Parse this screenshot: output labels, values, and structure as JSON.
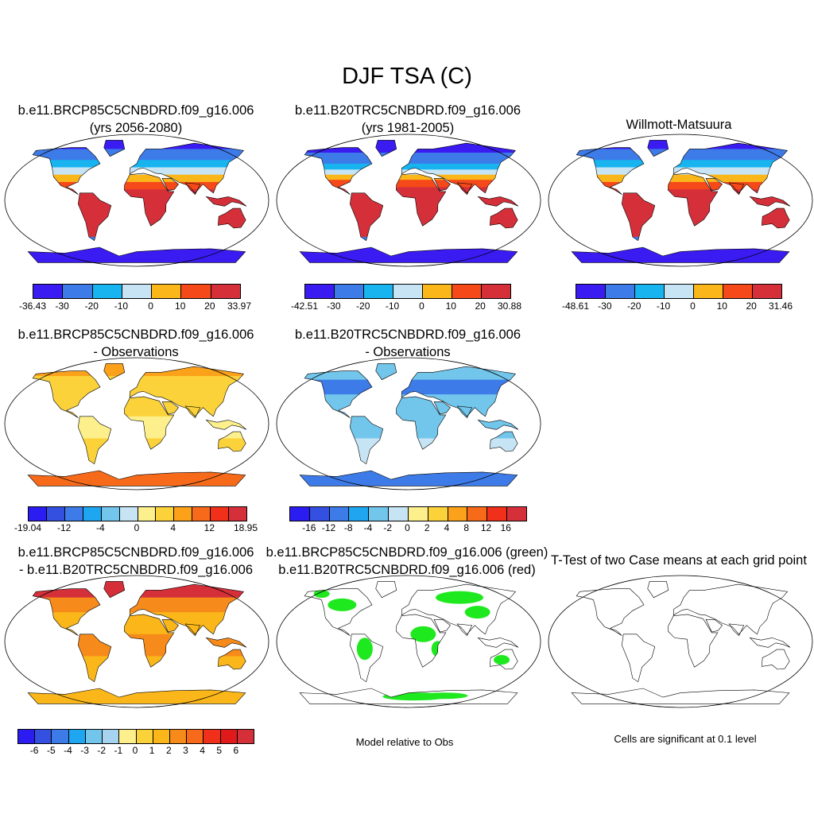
{
  "title": "DJF TSA (C)",
  "panels": [
    {
      "id": "p1",
      "title1": "b.e11.BRCP85C5CNBDRD.f09_g16.006",
      "title2": "(yrs 2056-2080)",
      "style": "temp",
      "variant": "future"
    },
    {
      "id": "p2",
      "title1": "b.e11.B20TRC5CNBDRD.f09_g16.006",
      "title2": "(yrs 1981-2005)",
      "style": "temp",
      "variant": "hist"
    },
    {
      "id": "p3",
      "title1": "",
      "title2": "Willmott-Matsuura",
      "style": "temp",
      "variant": "obs"
    },
    {
      "id": "p4",
      "title1": "b.e11.BRCP85C5CNBDRD.f09_g16.006",
      "title2": "- Observations",
      "style": "diff",
      "variant": "warm"
    },
    {
      "id": "p5",
      "title1": "b.e11.B20TRC5CNBDRD.f09_g16.006",
      "title2": "- Observations",
      "style": "diff",
      "variant": "cool"
    },
    {
      "id": "p7",
      "title1": "b.e11.BRCP85C5CNBDRD.f09_g16.006",
      "title2": "- b.e11.B20TRC5CNBDRD.f09_g16.006",
      "style": "diff",
      "variant": "hot"
    },
    {
      "id": "p8",
      "title1": "b.e11.BRCP85C5CNBDRD.f09_g16.006 (green)",
      "title2": "b.e11.B20TRC5CNBDRD.f09_g16.006 (red)",
      "style": "redgreen",
      "variant": "mix"
    },
    {
      "id": "p9",
      "title1": "",
      "title2": "T-Test of two Case means at each grid point",
      "style": "sig",
      "variant": "red"
    }
  ],
  "colorbars": {
    "cb1": {
      "colors": [
        "#3a1cf2",
        "#3d7be8",
        "#17b4f0",
        "#c6e4f4",
        "#fbb71a",
        "#f6491a",
        "#d5303a"
      ],
      "labels": [
        "-36.43",
        "-30",
        "-20",
        "-10",
        "0",
        "10",
        "20",
        "33.97"
      ]
    },
    "cb2": {
      "colors": [
        "#3a1cf2",
        "#3d7be8",
        "#17b4f0",
        "#c6e4f4",
        "#fbb71a",
        "#f6491a",
        "#d5303a"
      ],
      "labels": [
        "-42.51",
        "-30",
        "-20",
        "-10",
        "0",
        "10",
        "20",
        "30.88"
      ]
    },
    "cb3": {
      "colors": [
        "#3a1cf2",
        "#3d7be8",
        "#17b4f0",
        "#c6e4f4",
        "#fbb71a",
        "#f6491a",
        "#d5303a"
      ],
      "labels": [
        "-48.61",
        "-30",
        "-20",
        "-10",
        "0",
        "10",
        "20",
        "31.46"
      ]
    },
    "cb4": {
      "colors": [
        "#2b1cf2",
        "#3450e0",
        "#3d7be8",
        "#1ea6f0",
        "#72c6ec",
        "#c6e4f4",
        "#fdf08c",
        "#fbd23a",
        "#fba11a",
        "#f66a1a",
        "#f0301a",
        "#d5303a"
      ],
      "labels": [
        "-19.04",
        "-12",
        "-4",
        "0",
        "4",
        "12",
        "18.95"
      ]
    },
    "cb5": {
      "colors": [
        "#2b1cf2",
        "#3450e0",
        "#3d7be8",
        "#1ea6f0",
        "#72c6ec",
        "#c6e4f4",
        "#fdf08c",
        "#fbd23a",
        "#fba11a",
        "#f66a1a",
        "#f0301a",
        "#d5303a"
      ],
      "labels": [
        "-16",
        "-12",
        "-8",
        "-4",
        "-2",
        "0",
        "2",
        "4",
        "8",
        "12",
        "16"
      ]
    },
    "cb7": {
      "colors": [
        "#2b1cf2",
        "#3450e0",
        "#3d7be8",
        "#1ea6f0",
        "#72c6ec",
        "#a6d4f0",
        "#fdf08c",
        "#fbd23a",
        "#fbb71a",
        "#f68a1a",
        "#f66a1a",
        "#f0301a",
        "#e01a1a",
        "#d5303a"
      ],
      "labels": [
        "-6",
        "-5",
        "-4",
        "-3",
        "-2",
        "-1",
        "0",
        "1",
        "2",
        "3",
        "4",
        "5",
        "6"
      ]
    }
  },
  "notes": {
    "model_relative": "Model relative to Obs",
    "significance": "Cells are significant at 0.1 level"
  }
}
